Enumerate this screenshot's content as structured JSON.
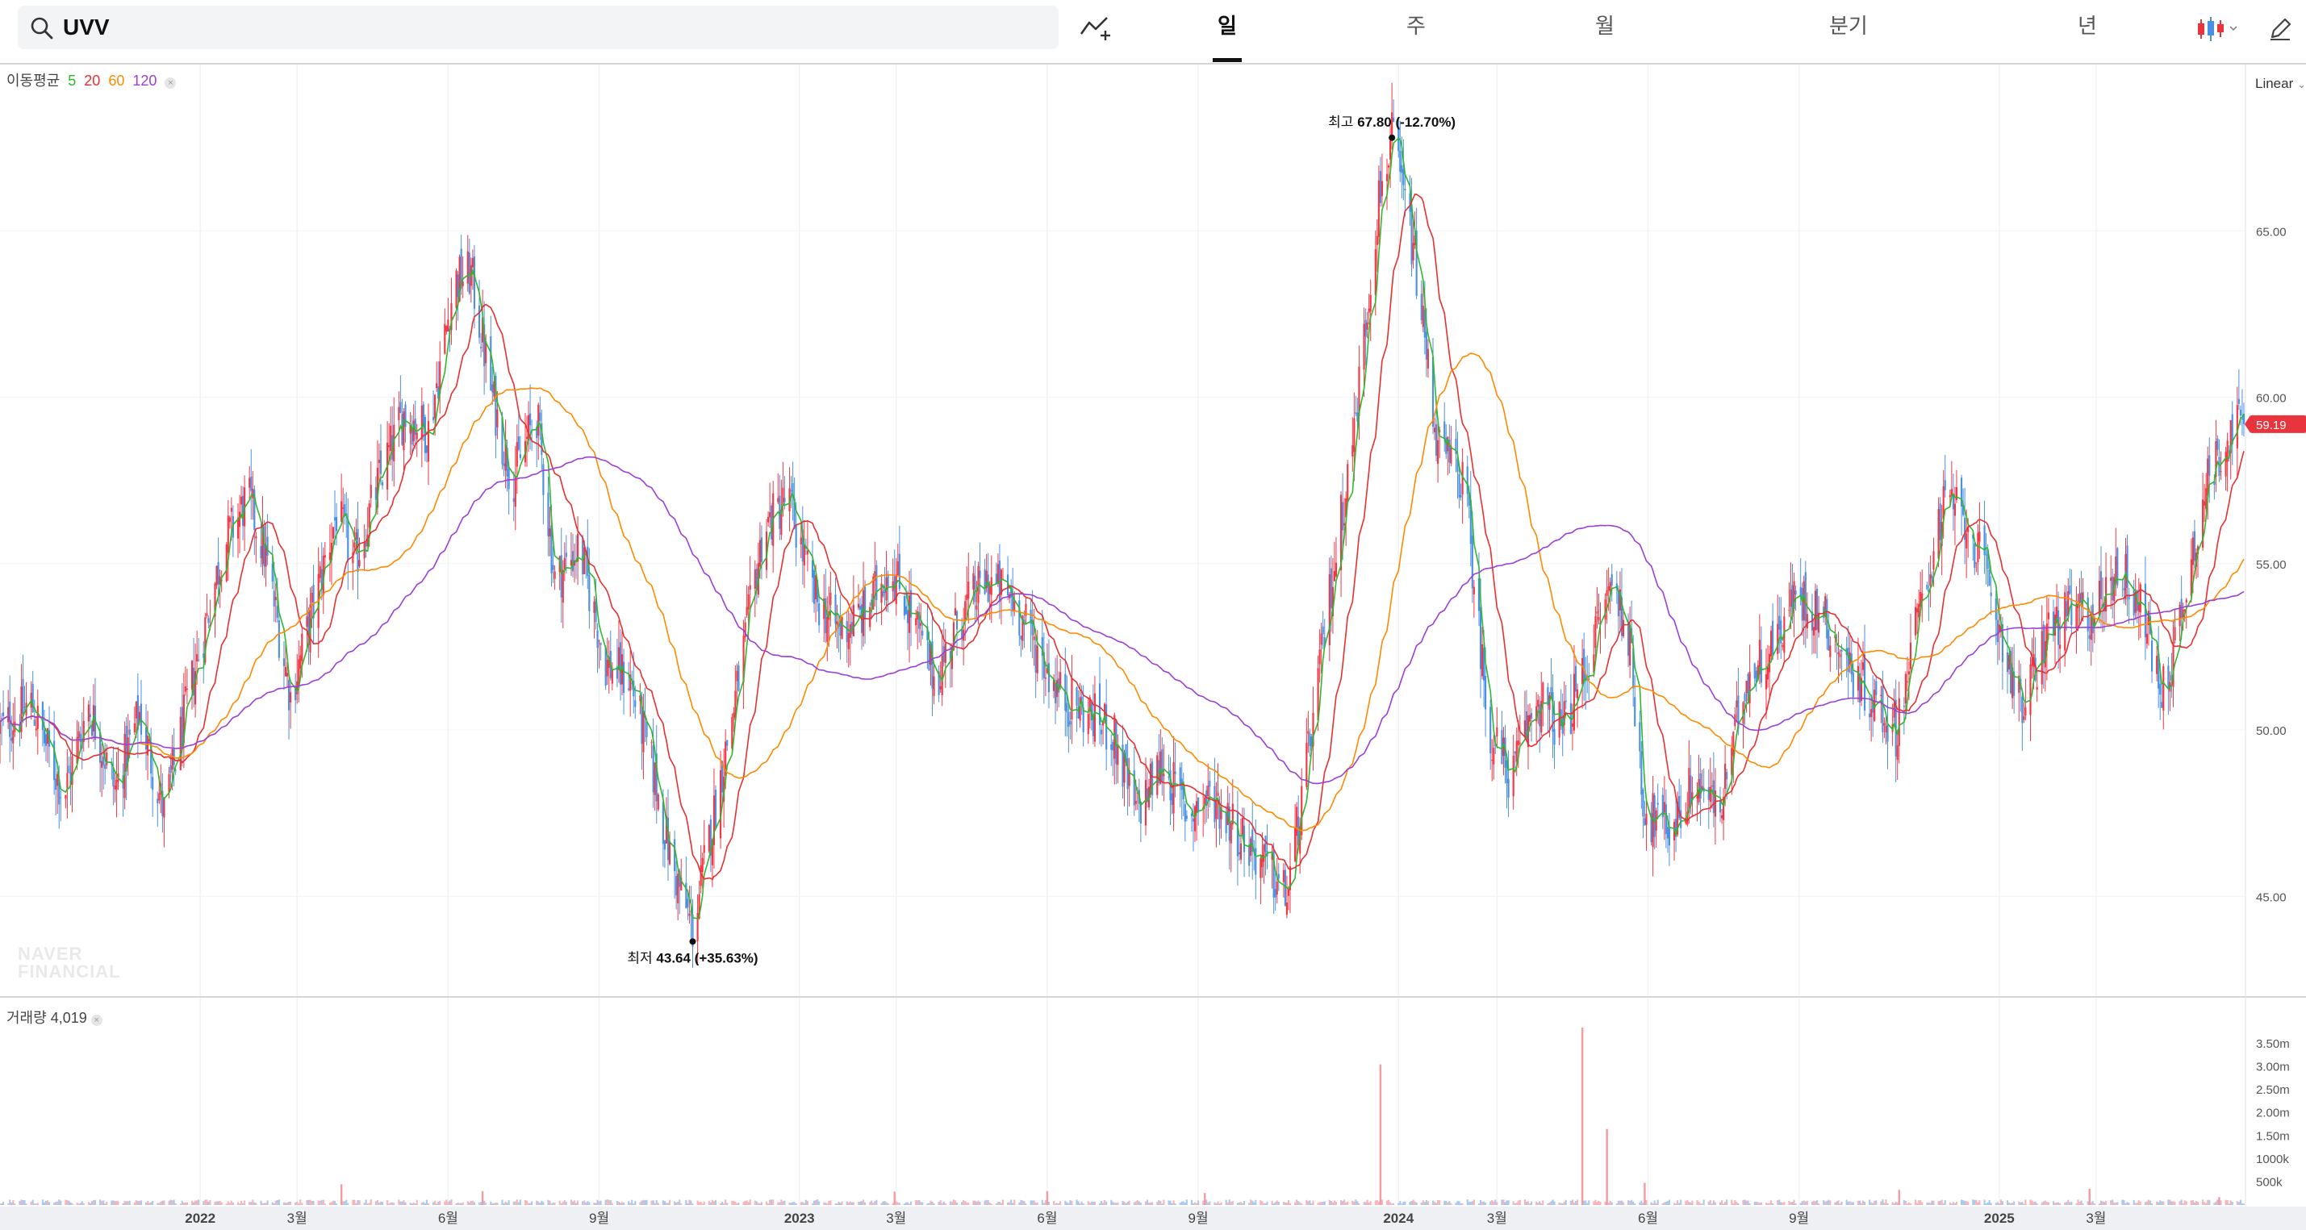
{
  "search": {
    "query": "UVV"
  },
  "tabs": [
    {
      "label": "일",
      "active": true
    },
    {
      "label": "주",
      "active": false
    },
    {
      "label": "월",
      "active": false
    },
    {
      "label": "분기",
      "active": false
    },
    {
      "label": "년",
      "active": false
    }
  ],
  "icons": {
    "search": "search-icon",
    "draw": "trend-line-add-icon",
    "candle": "candlestick-chart-type-icon",
    "edit": "pencil-icon"
  },
  "moving_average": {
    "label": "이동평균",
    "periods": [
      {
        "label": "5",
        "color": "#2eb82e"
      },
      {
        "label": "20",
        "color": "#e83030"
      },
      {
        "label": "60",
        "color": "#ff8a00"
      },
      {
        "label": "120",
        "color": "#9b3fd6"
      }
    ]
  },
  "scale_mode": "Linear",
  "volume": {
    "label": "거래량",
    "value": "4,019"
  },
  "watermark": [
    "NAVER",
    "FINANCIAL"
  ],
  "colors": {
    "up": "#f23645",
    "down": "#4a90e2",
    "ma5": "#2eb82e",
    "ma20": "#e83030",
    "ma60": "#ff8a00",
    "ma120": "#9b3fd6",
    "last_price_tag": "#e8343c"
  },
  "chart_data": {
    "type": "candlestick",
    "price_axis": {
      "ylim": [
        42.0,
        70.0
      ],
      "ticks": [
        "45.00",
        "50.00",
        "55.00",
        "60.00",
        "65.00"
      ],
      "tick_values": [
        45,
        50,
        55,
        60,
        65
      ]
    },
    "volume_axis": {
      "ticks": [
        "500k",
        "1000k",
        "1.50m",
        "2.00m",
        "2.50m",
        "3.00m",
        "3.50m"
      ],
      "tick_values": [
        500000,
        1000000,
        1500000,
        2000000,
        2500000,
        3000000,
        3500000
      ]
    },
    "x_range": [
      "2021-09-01",
      "2025-05-31"
    ],
    "x_ticks": [
      {
        "label": "2022",
        "date": "2022-01-01",
        "bold": true
      },
      {
        "label": "3월",
        "date": "2022-03-01"
      },
      {
        "label": "6월",
        "date": "2022-06-01"
      },
      {
        "label": "9월",
        "date": "2022-09-01"
      },
      {
        "label": "2023",
        "date": "2023-01-01",
        "bold": true
      },
      {
        "label": "3월",
        "date": "2023-03-01"
      },
      {
        "label": "6월",
        "date": "2023-06-01"
      },
      {
        "label": "9월",
        "date": "2023-09-01"
      },
      {
        "label": "2024",
        "date": "2024-01-01",
        "bold": true
      },
      {
        "label": "3월",
        "date": "2024-03-01"
      },
      {
        "label": "6월",
        "date": "2024-06-01"
      },
      {
        "label": "9월",
        "date": "2024-09-01"
      },
      {
        "label": "2025",
        "date": "2025-01-01",
        "bold": true
      },
      {
        "label": "3월",
        "date": "2025-03-01"
      }
    ],
    "price_path": [
      [
        "2021-09-01",
        50.0
      ],
      [
        "2021-09-20",
        50.8
      ],
      [
        "2021-10-10",
        48.0
      ],
      [
        "2021-10-25",
        50.8
      ],
      [
        "2021-11-10",
        48.2
      ],
      [
        "2021-11-25",
        50.5
      ],
      [
        "2021-12-10",
        47.5
      ],
      [
        "2021-12-25",
        51.0
      ],
      [
        "2022-01-15",
        55.5
      ],
      [
        "2022-01-30",
        57.0
      ],
      [
        "2022-02-10",
        55.2
      ],
      [
        "2022-02-25",
        51.0
      ],
      [
        "2022-03-10",
        53.5
      ],
      [
        "2022-03-25",
        56.5
      ],
      [
        "2022-04-05",
        55.0
      ],
      [
        "2022-04-20",
        57.5
      ],
      [
        "2022-05-05",
        59.5
      ],
      [
        "2022-05-20",
        59.0
      ],
      [
        "2022-06-05",
        63.5
      ],
      [
        "2022-06-15",
        63.7
      ],
      [
        "2022-06-28",
        60.0
      ],
      [
        "2022-07-10",
        57.5
      ],
      [
        "2022-07-25",
        59.5
      ],
      [
        "2022-08-05",
        54.5
      ],
      [
        "2022-08-20",
        55.5
      ],
      [
        "2022-09-05",
        52.0
      ],
      [
        "2022-09-20",
        51.5
      ],
      [
        "2022-10-05",
        48.5
      ],
      [
        "2022-10-15",
        46.0
      ],
      [
        "2022-10-28",
        44.0
      ],
      [
        "2022-11-10",
        47.5
      ],
      [
        "2022-11-25",
        51.5
      ],
      [
        "2022-12-10",
        56.0
      ],
      [
        "2022-12-25",
        57.0
      ],
      [
        "2023-01-10",
        54.0
      ],
      [
        "2023-01-25",
        53.0
      ],
      [
        "2023-02-10",
        53.5
      ],
      [
        "2023-02-25",
        55.0
      ],
      [
        "2023-03-10",
        53.5
      ],
      [
        "2023-03-25",
        51.5
      ],
      [
        "2023-04-10",
        53.5
      ],
      [
        "2023-04-25",
        54.5
      ],
      [
        "2023-05-10",
        54.0
      ],
      [
        "2023-05-25",
        52.5
      ],
      [
        "2023-06-10",
        51.0
      ],
      [
        "2023-06-25",
        50.5
      ],
      [
        "2023-07-10",
        50.0
      ],
      [
        "2023-07-25",
        47.5
      ],
      [
        "2023-08-10",
        49.0
      ],
      [
        "2023-08-25",
        47.5
      ],
      [
        "2023-09-10",
        48.0
      ],
      [
        "2023-09-25",
        47.0
      ],
      [
        "2023-10-10",
        46.0
      ],
      [
        "2023-10-25",
        45.0
      ],
      [
        "2023-11-05",
        48.5
      ],
      [
        "2023-11-20",
        54.0
      ],
      [
        "2023-12-05",
        59.0
      ],
      [
        "2023-12-20",
        66.0
      ],
      [
        "2023-12-28",
        67.8
      ],
      [
        "2024-01-10",
        64.5
      ],
      [
        "2024-01-25",
        58.5
      ],
      [
        "2024-02-10",
        57.5
      ],
      [
        "2024-02-25",
        50.0
      ],
      [
        "2024-03-10",
        48.5
      ],
      [
        "2024-03-25",
        51.0
      ],
      [
        "2024-04-10",
        50.0
      ],
      [
        "2024-04-25",
        52.0
      ],
      [
        "2024-05-10",
        54.5
      ],
      [
        "2024-05-20",
        53.0
      ],
      [
        "2024-05-30",
        47.5
      ],
      [
        "2024-06-15",
        47.0
      ],
      [
        "2024-06-30",
        48.5
      ],
      [
        "2024-07-15",
        47.5
      ],
      [
        "2024-07-30",
        51.5
      ],
      [
        "2024-08-15",
        52.5
      ],
      [
        "2024-08-30",
        54.0
      ],
      [
        "2024-09-15",
        53.5
      ],
      [
        "2024-09-30",
        52.0
      ],
      [
        "2024-10-15",
        51.0
      ],
      [
        "2024-10-30",
        50.0
      ],
      [
        "2024-11-15",
        54.0
      ],
      [
        "2024-11-30",
        57.0
      ],
      [
        "2024-12-15",
        56.0
      ],
      [
        "2024-12-30",
        53.5
      ],
      [
        "2025-01-15",
        50.5
      ],
      [
        "2025-01-30",
        53.0
      ],
      [
        "2025-02-15",
        53.5
      ],
      [
        "2025-02-28",
        53.5
      ],
      [
        "2025-03-15",
        55.0
      ],
      [
        "2025-03-30",
        53.5
      ],
      [
        "2025-04-10",
        51.0
      ],
      [
        "2025-04-20",
        53.0
      ],
      [
        "2025-05-05",
        57.0
      ],
      [
        "2025-05-20",
        59.0
      ],
      [
        "2025-05-31",
        59.19
      ]
    ],
    "volume_spikes": [
      [
        "2022-03-28",
        450000
      ],
      [
        "2022-06-22",
        300000
      ],
      [
        "2023-02-28",
        290000
      ],
      [
        "2023-06-01",
        300000
      ],
      [
        "2023-09-05",
        260000
      ],
      [
        "2023-12-21",
        3050000
      ],
      [
        "2024-04-22",
        3850000
      ],
      [
        "2024-05-07",
        1650000
      ],
      [
        "2024-05-30",
        480000
      ],
      [
        "2024-11-01",
        330000
      ],
      [
        "2025-02-25",
        350000
      ],
      [
        "2025-05-15",
        170000
      ]
    ],
    "high_marker": {
      "label": "최고",
      "value": "67.80",
      "change": "(-12.70%)",
      "date": "2023-12-28",
      "price": 67.8
    },
    "low_marker": {
      "label": "최저",
      "value": "43.64",
      "change": "(+35.63%)",
      "date": "2022-10-28",
      "price": 43.64
    },
    "last_price": {
      "label": "59.19",
      "value": 59.19
    }
  }
}
